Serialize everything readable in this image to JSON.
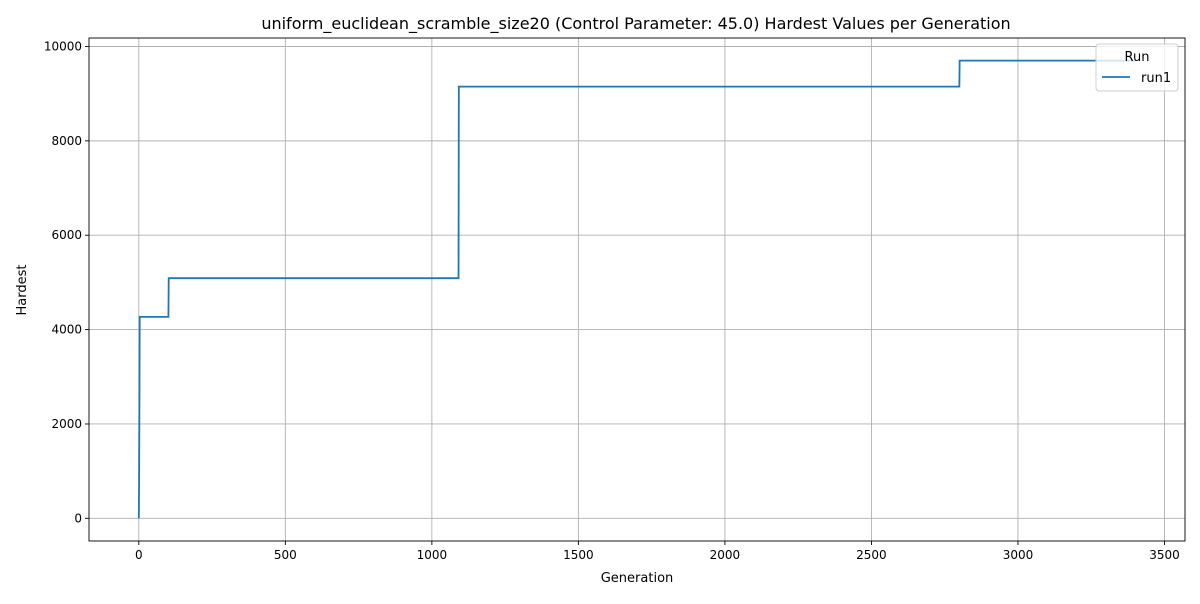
{
  "chart_data": {
    "type": "line",
    "title": "uniform_euclidean_scramble_size20 (Control Parameter: 45.0) Hardest Values per Generation",
    "xlabel": "Generation",
    "ylabel": "Hardest",
    "xlim": [
      -170,
      3570
    ],
    "ylim": [
      -480,
      10180
    ],
    "xticks": [
      0,
      500,
      1000,
      1500,
      2000,
      2500,
      3000,
      3500
    ],
    "yticks": [
      0,
      2000,
      4000,
      6000,
      8000,
      10000
    ],
    "grid": true,
    "legend": {
      "title": "Run",
      "placement": "top-right"
    },
    "series": [
      {
        "name": "run1",
        "color": "#1f77b4",
        "x": [
          0,
          1,
          2,
          3,
          101,
          102,
          1091,
          1092,
          2800,
          2801,
          3400
        ],
        "y": [
          0,
          900,
          2300,
          4270,
          4270,
          5090,
          5090,
          9150,
          9150,
          9700,
          9700
        ]
      }
    ]
  }
}
